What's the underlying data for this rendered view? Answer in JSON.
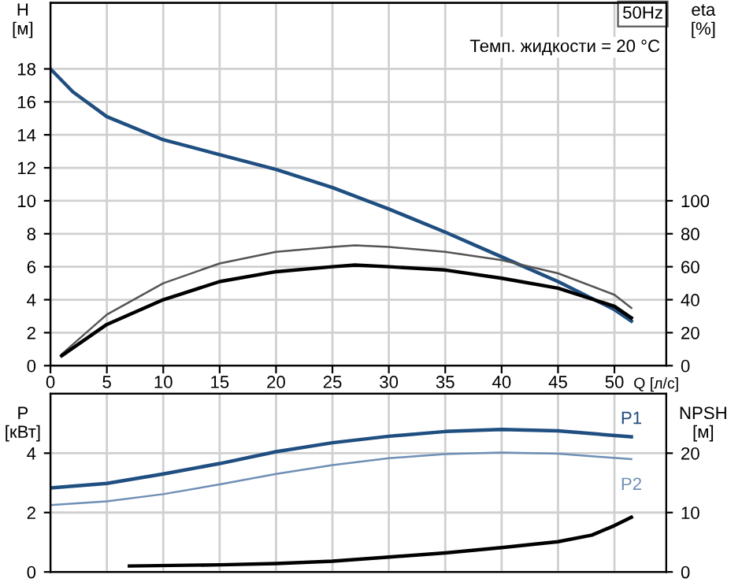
{
  "chart_data": [
    {
      "type": "line",
      "ylabel": "H\n[м]",
      "y2label": "eta\n[%]",
      "annotations": [
        "50Hz",
        "Темп. жидкости = 20 °C"
      ],
      "xlim": [
        0,
        54.6
      ],
      "xticks": [
        0,
        5,
        10,
        15,
        20,
        25,
        30,
        35,
        40,
        45,
        50
      ],
      "ylim": [
        0,
        22
      ],
      "yticks": [
        0,
        2,
        4,
        6,
        8,
        10,
        12,
        14,
        16,
        18
      ],
      "y2lim": [
        0,
        220
      ],
      "y2ticks": [
        0,
        20,
        40,
        60,
        80,
        100
      ],
      "grid": true,
      "legend": false,
      "tick_labels": "y",
      "series": [
        {
          "color": "#1f4e80",
          "x": [
            0,
            2,
            5,
            10,
            15,
            20,
            25,
            30,
            35,
            40,
            45,
            50,
            51.5
          ],
          "values": [
            18,
            16.6,
            15.1,
            13.7,
            12.8,
            11.9,
            10.8,
            9.5,
            8.1,
            6.6,
            5.1,
            3.4,
            2.7
          ]
        },
        {
          "color": "#555555",
          "axis": "y2",
          "x": [
            1,
            5,
            10,
            15,
            20,
            25,
            27,
            30,
            35,
            40,
            45,
            50,
            51.5
          ],
          "values": [
            7,
            31,
            50,
            62,
            69,
            72,
            73,
            72,
            69,
            64,
            56,
            43,
            35
          ]
        },
        {
          "color": "#000000",
          "axis": "y2",
          "x": [
            1,
            5,
            10,
            15,
            20,
            25,
            27,
            30,
            35,
            40,
            45,
            50,
            51.5
          ],
          "values": [
            6,
            25,
            40,
            51,
            57,
            60,
            61,
            60,
            58,
            53,
            47,
            36,
            29
          ]
        }
      ]
    },
    {
      "type": "line",
      "ylabel": "P\n[кВт]",
      "y2label": "NPSH\n[м]",
      "xlabel": "Q [л/с]",
      "xlim": [
        0,
        54.6
      ],
      "xticks": [
        0,
        5,
        10,
        15,
        20,
        25,
        30,
        35,
        40,
        45,
        50
      ],
      "ylim": [
        0,
        6
      ],
      "yticks": [
        0,
        2,
        4
      ],
      "y2lim": [
        0,
        30
      ],
      "y2ticks": [
        0,
        10,
        20
      ],
      "grid": true,
      "legend": false,
      "series": [
        {
          "name": "P1",
          "color": "#1f4e80",
          "x": [
            0,
            5,
            10,
            15,
            20,
            25,
            30,
            35,
            40,
            45,
            51.5
          ],
          "values": [
            2.83,
            2.98,
            3.3,
            3.65,
            4.05,
            4.35,
            4.57,
            4.73,
            4.8,
            4.75,
            4.55
          ]
        },
        {
          "name": "P2",
          "color": "#6f8fb5",
          "x": [
            0,
            5,
            10,
            15,
            20,
            25,
            30,
            35,
            40,
            45,
            51.5
          ],
          "values": [
            2.25,
            2.38,
            2.62,
            2.95,
            3.3,
            3.6,
            3.83,
            3.97,
            4.02,
            3.98,
            3.8
          ]
        },
        {
          "color": "#000000",
          "axis": "y2",
          "x": [
            7,
            15,
            20,
            25,
            30,
            35,
            40,
            45,
            48,
            50,
            51.5
          ],
          "values": [
            1,
            1.2,
            1.4,
            1.8,
            2.5,
            3.2,
            4.1,
            5.1,
            6.2,
            7.8,
            9.2
          ]
        }
      ]
    }
  ]
}
